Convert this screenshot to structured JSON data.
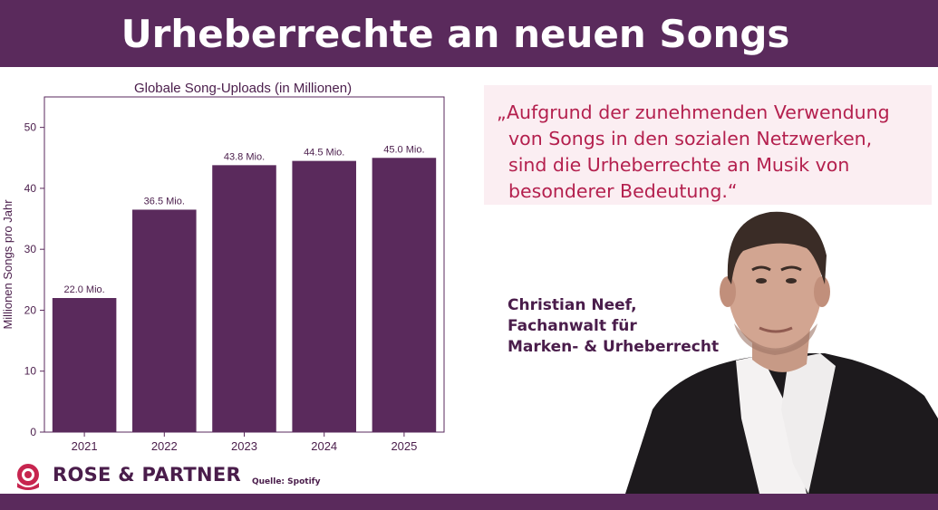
{
  "header": {
    "title": "Urheberrechte an neuen Songs"
  },
  "chart_data": {
    "type": "bar",
    "title": "Globale Song-Uploads (in Millionen)",
    "xlabel": "",
    "ylabel": "Millionen Songs pro Jahr",
    "categories": [
      "2021",
      "2022",
      "2023",
      "2024",
      "2025"
    ],
    "values": [
      22.0,
      36.5,
      43.8,
      44.5,
      45.0
    ],
    "data_labels": [
      "22.0 Mio.",
      "36.5 Mio.",
      "43.8 Mio.",
      "44.5 Mio.",
      "45.0 Mio."
    ],
    "yticks": [
      0,
      10,
      20,
      30,
      40,
      50
    ],
    "ylim": [
      0,
      55
    ],
    "grid": false,
    "bar_color": "#5a2a5c"
  },
  "quote": {
    "lines": [
      "„Aufgrund der zunehmenden Verwendung",
      "  von Songs in den sozialen Netzwerken,",
      "  sind die Urheberrechte an Musik von",
      "  besonderer Bedeutung.“"
    ]
  },
  "person": {
    "line1": "Christian Neef,",
    "line2": "Fachanwalt für",
    "line3": "Marken- & Urheberrecht"
  },
  "brand": {
    "name": "ROSE & PARTNER",
    "logo_icon": "rose-logo-icon"
  },
  "source": "Quelle: Spotify",
  "colors": {
    "brand_purple": "#5a2a5c",
    "quote_red": "#b4204e",
    "quote_bg": "#fbeef2"
  }
}
